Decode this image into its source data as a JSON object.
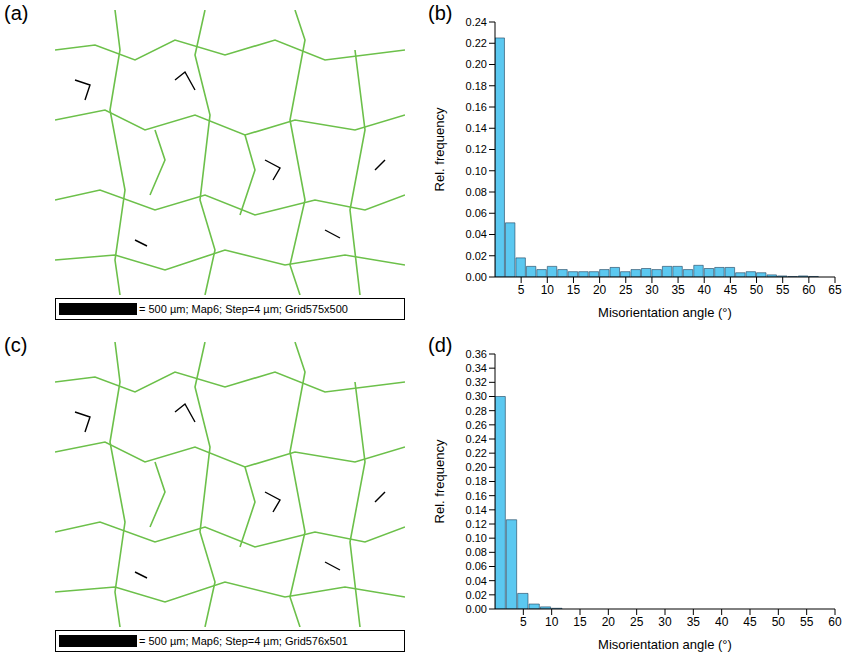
{
  "maps": [
    {
      "panel": "(a)",
      "scale_bar": "= 500 µm; Map6; Step=4 µm; Grid575x500"
    },
    {
      "panel": "(c)",
      "scale_bar": "= 500 µm; Map6; Step=4 µm; Grid576x501"
    }
  ],
  "chart_data": [
    {
      "type": "histogram",
      "panel": "(b)",
      "x_label": "Misorientation angle (°)",
      "y_label": "Rel. frequency",
      "color": "#5bc8f0",
      "grid": false,
      "bins": [
        0,
        2,
        4,
        6,
        8,
        10,
        12,
        14,
        16,
        18,
        20,
        22,
        24,
        26,
        28,
        30,
        32,
        34,
        36,
        38,
        40,
        42,
        44,
        46,
        48,
        50,
        52,
        54,
        56,
        58,
        60,
        62
      ],
      "values": [
        0.225,
        0.051,
        0.018,
        0.01,
        0.007,
        0.01,
        0.007,
        0.005,
        0.005,
        0.005,
        0.007,
        0.009,
        0.005,
        0.007,
        0.008,
        0.007,
        0.01,
        0.01,
        0.007,
        0.011,
        0.008,
        0.009,
        0.009,
        0.004,
        0.005,
        0.004,
        0.002,
        0.001,
        0.0005,
        0.001,
        0.0005
      ],
      "xlim": [
        0,
        65
      ],
      "xticks": [
        5,
        10,
        15,
        20,
        25,
        30,
        35,
        40,
        45,
        50,
        55,
        60,
        65
      ],
      "ylim": [
        0,
        0.24
      ],
      "yticks": [
        {
          "value": 0,
          "label": "0.00"
        },
        {
          "value": 0.02,
          "label": "0.02"
        },
        {
          "value": 0.04,
          "label": "0.04"
        },
        {
          "value": 0.06,
          "label": "0.06"
        },
        {
          "value": 0.08,
          "label": "0.08"
        },
        {
          "value": 0.1,
          "label": "0.10"
        },
        {
          "value": 0.12,
          "label": "0.12"
        },
        {
          "value": 0.14,
          "label": "0.14"
        },
        {
          "value": 0.16,
          "label": "0.16"
        },
        {
          "value": 0.18,
          "label": "0.18"
        },
        {
          "value": 0.2,
          "label": "0.20"
        },
        {
          "value": 0.22,
          "label": "0.22"
        },
        {
          "value": 0.24,
          "label": "0.24"
        }
      ]
    },
    {
      "type": "histogram",
      "panel": "(d)",
      "x_label": "Misorientation angle (°)",
      "y_label": "Rel. frequency",
      "color": "#5bc8f0",
      "grid": false,
      "bins": [
        0,
        2,
        4,
        6,
        8,
        10,
        12,
        14,
        16,
        18,
        20,
        22,
        24,
        26,
        28,
        30,
        32,
        34,
        36,
        38,
        40,
        42,
        44,
        46,
        48,
        50,
        52,
        54,
        56,
        58,
        60
      ],
      "values": [
        0.3,
        0.126,
        0.022,
        0.007,
        0.003,
        0.001,
        0,
        0,
        0,
        0,
        0,
        0,
        0,
        0,
        0,
        0,
        0,
        0,
        0,
        0,
        0,
        0,
        0,
        0,
        0,
        0,
        0,
        0,
        0,
        0
      ],
      "xlim": [
        0,
        60
      ],
      "xticks": [
        5,
        10,
        15,
        20,
        25,
        30,
        35,
        40,
        45,
        50,
        55,
        60
      ],
      "ylim": [
        0,
        0.36
      ],
      "yticks": [
        {
          "value": 0,
          "label": "0.00"
        },
        {
          "value": 0.02,
          "label": "0.02"
        },
        {
          "value": 0.04,
          "label": "0.04"
        },
        {
          "value": 0.06,
          "label": "0.06"
        },
        {
          "value": 0.08,
          "label": "0.08"
        },
        {
          "value": 0.1,
          "label": "0.10"
        },
        {
          "value": 0.12,
          "label": "0.12"
        },
        {
          "value": 0.14,
          "label": "0.14"
        },
        {
          "value": 0.16,
          "label": "0.16"
        },
        {
          "value": 0.18,
          "label": "0.18"
        },
        {
          "value": 0.2,
          "label": "0.20"
        },
        {
          "value": 0.22,
          "label": "0.22"
        },
        {
          "value": 0.24,
          "label": "0.24"
        },
        {
          "value": 0.26,
          "label": "0.26"
        },
        {
          "value": 0.28,
          "label": "0.28"
        },
        {
          "value": 0.3,
          "label": "0.30"
        },
        {
          "value": 0.32,
          "label": "0.32"
        },
        {
          "value": 0.34,
          "label": "0.34"
        },
        {
          "value": 0.36,
          "label": "0.36"
        }
      ]
    }
  ]
}
